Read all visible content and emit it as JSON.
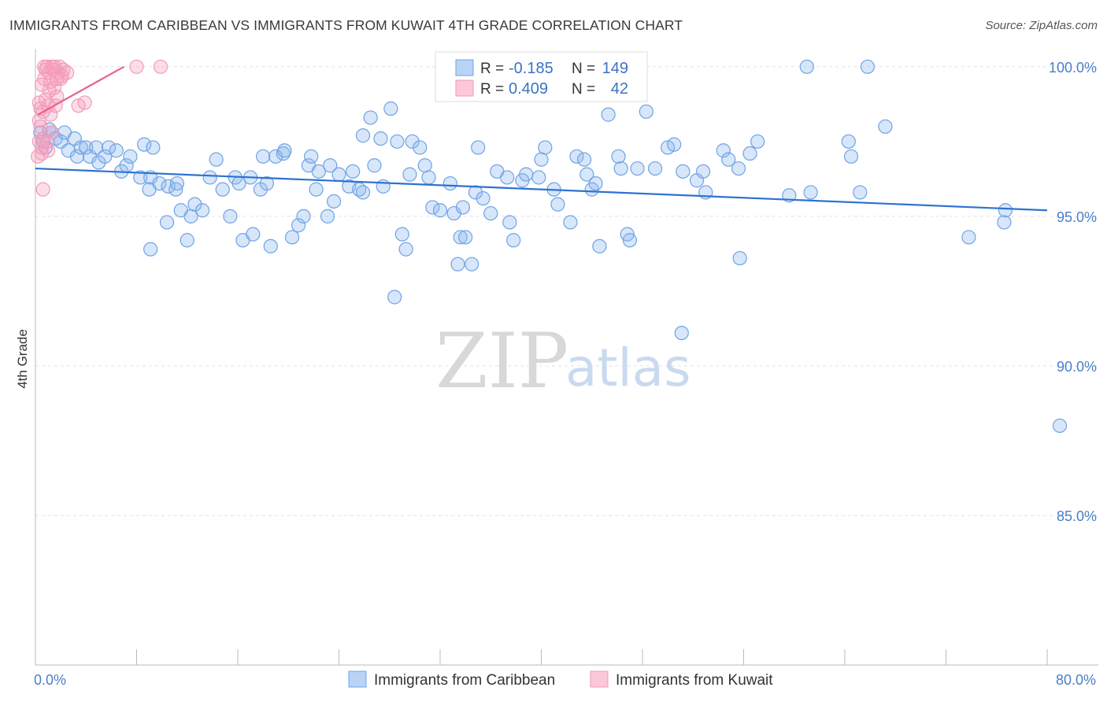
{
  "title": "IMMIGRANTS FROM CARIBBEAN VS IMMIGRANTS FROM KUWAIT 4TH GRADE CORRELATION CHART",
  "source": "Source: ZipAtlas.com",
  "watermark": {
    "zip": "ZIP",
    "atlas": "atlas"
  },
  "chart_data": {
    "type": "scatter",
    "ylabel": "4th Grade",
    "xlim": [
      0,
      80
    ],
    "ylim": [
      80,
      100.6
    ],
    "x_ticks": [
      {
        "value": 0,
        "label": "0.0%"
      },
      {
        "value": 80,
        "label": "80.0%"
      }
    ],
    "y_ticks": [
      {
        "value": 100,
        "label": "100.0%"
      },
      {
        "value": 95,
        "label": "95.0%"
      },
      {
        "value": 90,
        "label": "90.0%"
      },
      {
        "value": 85,
        "label": "85.0%"
      }
    ],
    "legend": [
      {
        "series": "Immigrants from Caribbean",
        "r_label": "R =",
        "r": "-0.185",
        "n_label": "N =",
        "n": "149"
      },
      {
        "series": "Immigrants from Kuwait",
        "r_label": "R =",
        "r": "0.409",
        "n_label": "N =",
        "n": "42"
      }
    ],
    "series": [
      {
        "name": "Immigrants from Caribbean",
        "color": "#6fa3e6",
        "line_color": "#2e72cf",
        "trend": {
          "x0": 0,
          "y0": 96.6,
          "x1": 80,
          "y1": 95.2
        },
        "points": [
          [
            0.4,
            97.8
          ],
          [
            0.6,
            97.5
          ],
          [
            0.8,
            97.3
          ],
          [
            1.1,
            97.9
          ],
          [
            1.3,
            97.8
          ],
          [
            1.6,
            97.6
          ],
          [
            2.0,
            97.5
          ],
          [
            2.3,
            97.8
          ],
          [
            2.6,
            97.2
          ],
          [
            3.1,
            97.6
          ],
          [
            3.3,
            97.0
          ],
          [
            3.6,
            97.3
          ],
          [
            4.0,
            97.3
          ],
          [
            4.3,
            97.0
          ],
          [
            4.8,
            97.3
          ],
          [
            5.0,
            96.8
          ],
          [
            5.5,
            97.0
          ],
          [
            5.8,
            97.3
          ],
          [
            6.4,
            97.2
          ],
          [
            6.8,
            96.5
          ],
          [
            7.2,
            96.7
          ],
          [
            7.5,
            97.0
          ],
          [
            8.3,
            96.3
          ],
          [
            8.6,
            97.4
          ],
          [
            9.1,
            96.3
          ],
          [
            9.3,
            97.3
          ],
          [
            9.0,
            95.9
          ],
          [
            9.8,
            96.1
          ],
          [
            10.5,
            96.0
          ],
          [
            11.1,
            95.9
          ],
          [
            11.2,
            96.1
          ],
          [
            11.5,
            95.2
          ],
          [
            12.3,
            95.0
          ],
          [
            12.6,
            95.4
          ],
          [
            13.2,
            95.2
          ],
          [
            13.8,
            96.3
          ],
          [
            14.3,
            96.9
          ],
          [
            14.8,
            95.9
          ],
          [
            15.4,
            95.0
          ],
          [
            15.8,
            96.3
          ],
          [
            16.1,
            96.1
          ],
          [
            16.4,
            94.2
          ],
          [
            17.0,
            96.3
          ],
          [
            17.2,
            94.4
          ],
          [
            17.8,
            95.9
          ],
          [
            18.0,
            97.0
          ],
          [
            18.3,
            96.1
          ],
          [
            18.6,
            94.0
          ],
          [
            19.0,
            97.0
          ],
          [
            19.6,
            97.1
          ],
          [
            19.7,
            97.2
          ],
          [
            20.3,
            94.3
          ],
          [
            20.8,
            94.7
          ],
          [
            21.2,
            95.0
          ],
          [
            21.6,
            96.7
          ],
          [
            21.8,
            97.0
          ],
          [
            22.2,
            95.9
          ],
          [
            22.4,
            96.5
          ],
          [
            23.1,
            95.0
          ],
          [
            23.3,
            96.7
          ],
          [
            23.6,
            95.5
          ],
          [
            24.0,
            96.4
          ],
          [
            24.8,
            96.0
          ],
          [
            25.1,
            96.5
          ],
          [
            25.6,
            95.9
          ],
          [
            25.9,
            97.7
          ],
          [
            25.9,
            95.8
          ],
          [
            26.5,
            98.3
          ],
          [
            26.8,
            96.7
          ],
          [
            27.3,
            97.6
          ],
          [
            27.5,
            96.0
          ],
          [
            28.1,
            98.6
          ],
          [
            28.6,
            97.5
          ],
          [
            29.0,
            94.4
          ],
          [
            29.3,
            93.9
          ],
          [
            29.6,
            96.4
          ],
          [
            29.8,
            97.5
          ],
          [
            30.4,
            97.3
          ],
          [
            30.8,
            96.7
          ],
          [
            31.1,
            96.3
          ],
          [
            31.4,
            95.3
          ],
          [
            32.0,
            95.2
          ],
          [
            32.8,
            96.1
          ],
          [
            33.1,
            95.1
          ],
          [
            33.8,
            95.3
          ],
          [
            33.6,
            94.3
          ],
          [
            34.0,
            94.3
          ],
          [
            34.5,
            93.4
          ],
          [
            34.8,
            95.8
          ],
          [
            35.0,
            97.3
          ],
          [
            35.4,
            95.6
          ],
          [
            36.0,
            95.1
          ],
          [
            36.5,
            96.5
          ],
          [
            37.3,
            96.3
          ],
          [
            37.5,
            94.8
          ],
          [
            37.8,
            94.2
          ],
          [
            38.5,
            96.2
          ],
          [
            38.8,
            96.4
          ],
          [
            39.8,
            96.3
          ],
          [
            40.0,
            96.9
          ],
          [
            40.3,
            97.3
          ],
          [
            41.0,
            95.9
          ],
          [
            41.3,
            95.4
          ],
          [
            42.3,
            94.8
          ],
          [
            42.8,
            97.0
          ],
          [
            43.4,
            96.9
          ],
          [
            43.6,
            96.4
          ],
          [
            44.0,
            95.9
          ],
          [
            44.3,
            96.1
          ],
          [
            44.6,
            94.0
          ],
          [
            45.3,
            98.4
          ],
          [
            46.1,
            97.0
          ],
          [
            46.3,
            96.6
          ],
          [
            46.8,
            94.4
          ],
          [
            47.0,
            94.2
          ],
          [
            47.6,
            96.6
          ],
          [
            48.3,
            98.5
          ],
          [
            49.0,
            96.6
          ],
          [
            50.0,
            97.3
          ],
          [
            50.5,
            97.4
          ],
          [
            51.2,
            96.5
          ],
          [
            52.3,
            96.2
          ],
          [
            52.8,
            96.5
          ],
          [
            53.0,
            95.8
          ],
          [
            54.4,
            97.2
          ],
          [
            54.8,
            96.9
          ],
          [
            55.6,
            96.6
          ],
          [
            55.7,
            93.6
          ],
          [
            56.5,
            97.1
          ],
          [
            57.1,
            97.5
          ],
          [
            59.6,
            95.7
          ],
          [
            61.0,
            100.0
          ],
          [
            61.3,
            95.8
          ],
          [
            64.3,
            97.5
          ],
          [
            64.5,
            97.0
          ],
          [
            65.2,
            95.8
          ],
          [
            65.8,
            100.0
          ],
          [
            67.2,
            98.0
          ],
          [
            73.8,
            94.3
          ],
          [
            76.6,
            94.8
          ],
          [
            76.7,
            95.2
          ],
          [
            81.0,
            88.0
          ],
          [
            51.1,
            91.1
          ],
          [
            33.4,
            93.4
          ],
          [
            28.4,
            92.3
          ],
          [
            12.0,
            94.2
          ],
          [
            10.4,
            94.8
          ],
          [
            9.1,
            93.9
          ]
        ]
      },
      {
        "name": "Immigrants from Kuwait",
        "color": "#f29ab8",
        "line_color": "#e8628f",
        "trend": {
          "x0": 0.2,
          "y0": 98.4,
          "x1": 7.0,
          "y1": 100.0
        },
        "points": [
          [
            0.2,
            97.0
          ],
          [
            0.3,
            97.5
          ],
          [
            0.3,
            98.2
          ],
          [
            0.4,
            98.6
          ],
          [
            0.5,
            97.1
          ],
          [
            0.6,
            97.6
          ],
          [
            0.6,
            98.5
          ],
          [
            0.7,
            99.6
          ],
          [
            0.8,
            99.9
          ],
          [
            0.9,
            100.0
          ],
          [
            1.0,
            97.2
          ],
          [
            1.0,
            98.7
          ],
          [
            1.1,
            99.2
          ],
          [
            1.2,
            99.5
          ],
          [
            1.3,
            100.0
          ],
          [
            1.4,
            99.9
          ],
          [
            1.5,
            99.3
          ],
          [
            1.6,
            98.7
          ],
          [
            1.7,
            99.0
          ],
          [
            1.8,
            99.8
          ],
          [
            1.9,
            100.0
          ],
          [
            2.0,
            99.6
          ],
          [
            2.2,
            99.9
          ],
          [
            2.5,
            99.8
          ],
          [
            3.4,
            98.7
          ],
          [
            3.9,
            98.8
          ],
          [
            8.0,
            100.0
          ],
          [
            9.9,
            100.0
          ],
          [
            0.6,
            95.9
          ],
          [
            0.4,
            98.0
          ],
          [
            0.5,
            99.4
          ],
          [
            1.3,
            97.8
          ],
          [
            0.8,
            98.9
          ],
          [
            1.1,
            99.8
          ],
          [
            2.1,
            99.7
          ],
          [
            0.3,
            98.8
          ],
          [
            0.7,
            100.0
          ],
          [
            1.5,
            100.0
          ],
          [
            1.2,
            98.4
          ],
          [
            1.7,
            99.6
          ],
          [
            0.9,
            97.5
          ],
          [
            0.5,
            97.3
          ]
        ]
      }
    ]
  }
}
